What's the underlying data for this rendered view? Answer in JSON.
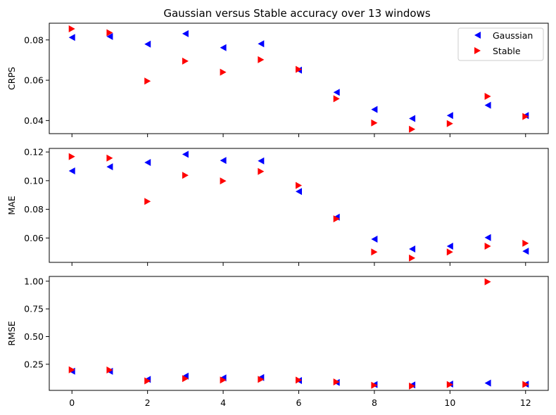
{
  "chart_data": {
    "type": "scatter",
    "title": "Gaussian versus Stable accuracy over 13 windows",
    "legend": {
      "placement": "top-right",
      "entries": [
        "Gaussian",
        "Stable"
      ]
    },
    "series_styles": [
      {
        "name": "Gaussian",
        "color": "#0000ff",
        "marker": "triangle-left"
      },
      {
        "name": "Stable",
        "color": "#ff0000",
        "marker": "triangle-right"
      }
    ],
    "x": [
      0,
      1,
      2,
      3,
      4,
      5,
      6,
      7,
      8,
      9,
      10,
      11,
      12
    ],
    "xlim": [
      -0.6,
      12.6
    ],
    "xticks": [
      0,
      2,
      4,
      6,
      8,
      10,
      12
    ],
    "xtick_labels": [
      "0",
      "2",
      "4",
      "6",
      "8",
      "10",
      "12"
    ],
    "panels": [
      {
        "ylabel": "CRPS",
        "ylim": [
          0.0335,
          0.0883
        ],
        "yticks": [
          0.04,
          0.06,
          0.08
        ],
        "ytick_labels": [
          "0.04",
          "0.06",
          "0.08"
        ],
        "series": [
          {
            "name": "Gaussian",
            "values": [
              0.0812,
              0.0817,
              0.0779,
              0.0831,
              0.0762,
              0.0781,
              0.065,
              0.054,
              0.0455,
              0.041,
              0.0425,
              0.0476,
              0.0425
            ]
          },
          {
            "name": "Stable",
            "values": [
              0.0855,
              0.0836,
              0.0596,
              0.0695,
              0.064,
              0.0702,
              0.0654,
              0.0508,
              0.0388,
              0.0357,
              0.0385,
              0.052,
              0.042
            ]
          }
        ]
      },
      {
        "ylabel": "MAE",
        "ylim": [
          0.043,
          0.1225
        ],
        "yticks": [
          0.06,
          0.08,
          0.1,
          0.12
        ],
        "ytick_labels": [
          "0.06",
          "0.08",
          "0.10",
          "0.12"
        ],
        "series": [
          {
            "name": "Gaussian",
            "values": [
              0.1068,
              0.1097,
              0.1127,
              0.1184,
              0.1141,
              0.1138,
              0.0924,
              0.0745,
              0.0592,
              0.0523,
              0.0543,
              0.0603,
              0.0508
            ]
          },
          {
            "name": "Stable",
            "values": [
              0.1168,
              0.1158,
              0.0855,
              0.1037,
              0.0998,
              0.1064,
              0.0967,
              0.0734,
              0.0502,
              0.046,
              0.0502,
              0.0543,
              0.0563
            ]
          }
        ]
      },
      {
        "ylabel": "RMSE",
        "ylim": [
          0.014,
          1.043
        ],
        "yticks": [
          0.25,
          0.5,
          0.75,
          1.0
        ],
        "ytick_labels": [
          "0.25",
          "0.50",
          "0.75",
          "1.00"
        ],
        "series": [
          {
            "name": "Gaussian",
            "values": [
              0.187,
              0.186,
              0.113,
              0.143,
              0.127,
              0.13,
              0.103,
              0.085,
              0.067,
              0.063,
              0.071,
              0.08,
              0.07
            ]
          },
          {
            "name": "Stable",
            "values": [
              0.2,
              0.198,
              0.1,
              0.12,
              0.108,
              0.113,
              0.107,
              0.09,
              0.06,
              0.053,
              0.067,
              0.995,
              0.068
            ]
          }
        ]
      }
    ]
  }
}
